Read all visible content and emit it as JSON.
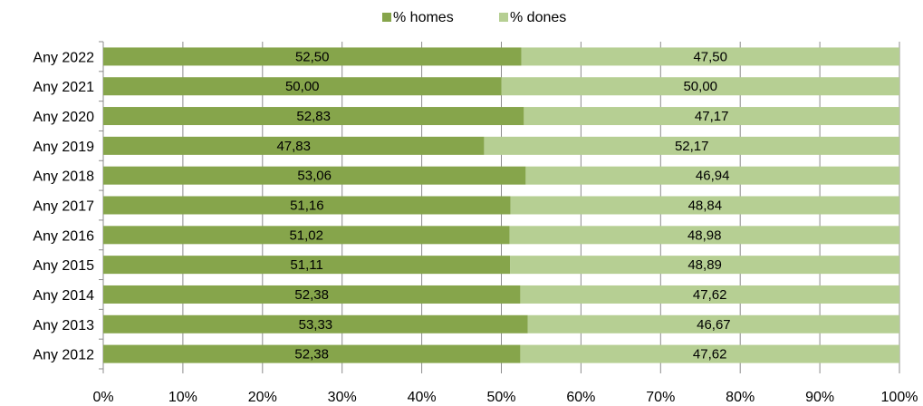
{
  "chart_data": {
    "type": "bar",
    "orientation": "horizontal",
    "stacked": "100%",
    "categories": [
      "Any 2022",
      "Any 2021",
      "Any 2020",
      "Any 2019",
      "Any 2018",
      "Any 2017",
      "Any 2016",
      "Any 2015",
      "Any 2014",
      "Any 2013",
      "Any 2012"
    ],
    "series": [
      {
        "name": "% homes",
        "color": "#86a54b",
        "values": [
          52.5,
          50.0,
          52.83,
          47.83,
          53.06,
          51.16,
          51.02,
          51.11,
          52.38,
          53.33,
          52.38
        ],
        "labels": [
          "52,50",
          "50,00",
          "52,83",
          "47,83",
          "53,06",
          "51,16",
          "51,02",
          "51,11",
          "52,38",
          "53,33",
          "52,38"
        ]
      },
      {
        "name": "% dones",
        "color": "#b6cf93",
        "values": [
          47.5,
          50.0,
          47.17,
          52.17,
          46.94,
          48.84,
          48.98,
          48.89,
          47.62,
          46.67,
          47.62
        ],
        "labels": [
          "47,50",
          "50,00",
          "47,17",
          "52,17",
          "46,94",
          "48,84",
          "48,98",
          "48,89",
          "47,62",
          "46,67",
          "47,62"
        ]
      }
    ],
    "xlim": [
      0,
      100
    ],
    "xticks": [
      "0%",
      "10%",
      "20%",
      "30%",
      "40%",
      "50%",
      "60%",
      "70%",
      "80%",
      "90%",
      "100%"
    ],
    "grid": true,
    "legend": "top-center"
  }
}
